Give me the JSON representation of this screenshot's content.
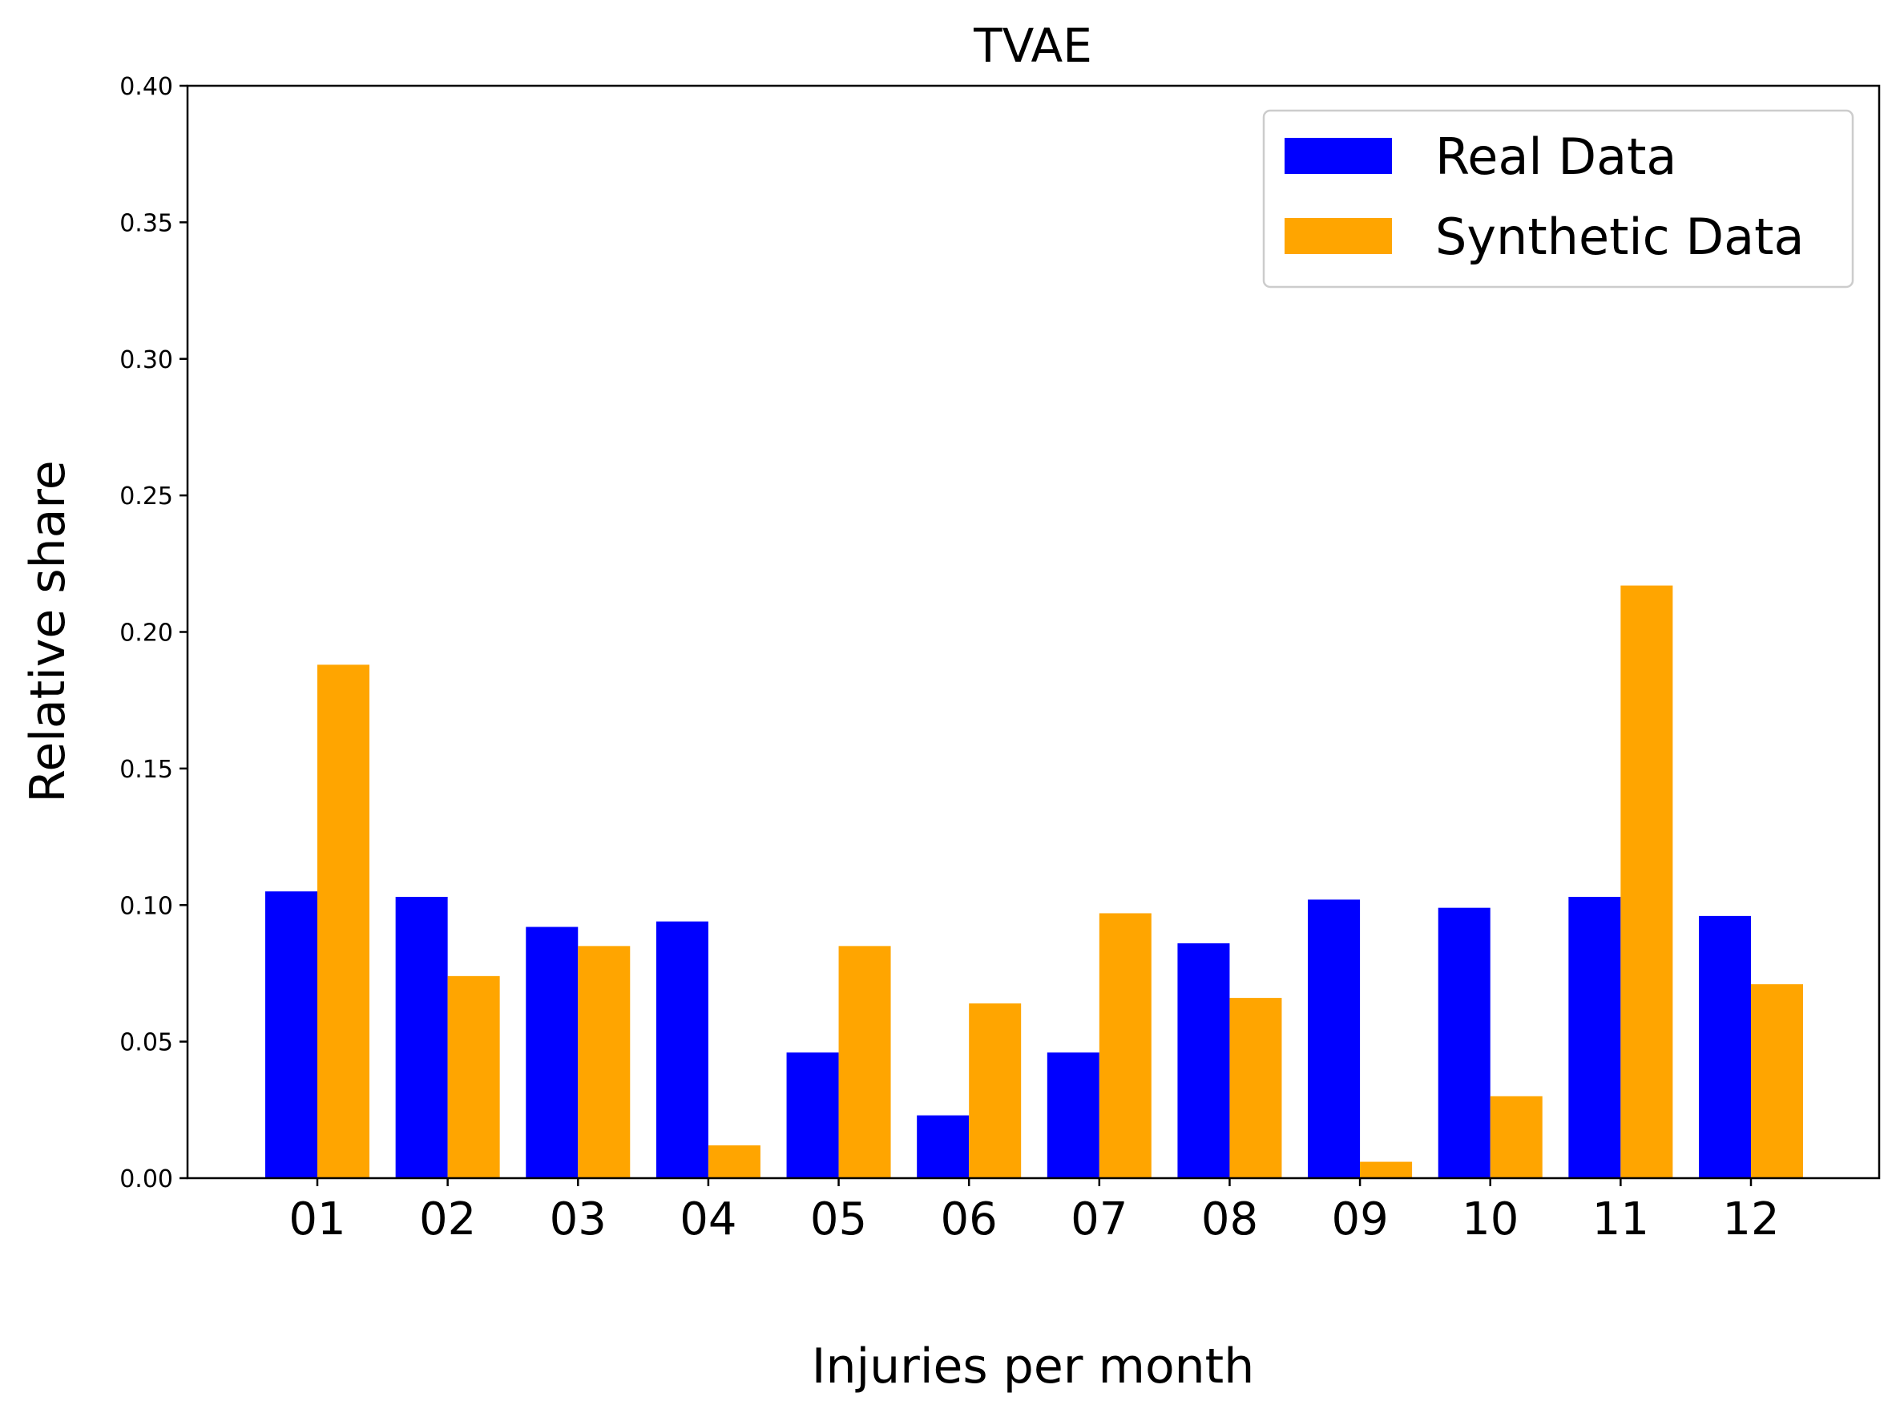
{
  "chart_data": {
    "type": "bar",
    "title": "TVAE",
    "xlabel": "Injuries per month",
    "ylabel": "Relative share",
    "categories": [
      "01",
      "02",
      "03",
      "04",
      "05",
      "06",
      "07",
      "08",
      "09",
      "10",
      "11",
      "12"
    ],
    "ylim": [
      0,
      0.4
    ],
    "yticks": [
      "0.00",
      "0.05",
      "0.10",
      "0.15",
      "0.20",
      "0.25",
      "0.30",
      "0.35",
      "0.40"
    ],
    "grid": false,
    "legend_position": "top-right",
    "series": [
      {
        "name": "Real Data",
        "color": "#0000ff",
        "values": [
          0.105,
          0.103,
          0.092,
          0.094,
          0.046,
          0.023,
          0.046,
          0.086,
          0.102,
          0.099,
          0.103,
          0.096
        ]
      },
      {
        "name": "Synthetic Data",
        "color": "#ffa500",
        "values": [
          0.188,
          0.074,
          0.085,
          0.012,
          0.085,
          0.064,
          0.097,
          0.066,
          0.006,
          0.03,
          0.217,
          0.071
        ]
      }
    ]
  }
}
